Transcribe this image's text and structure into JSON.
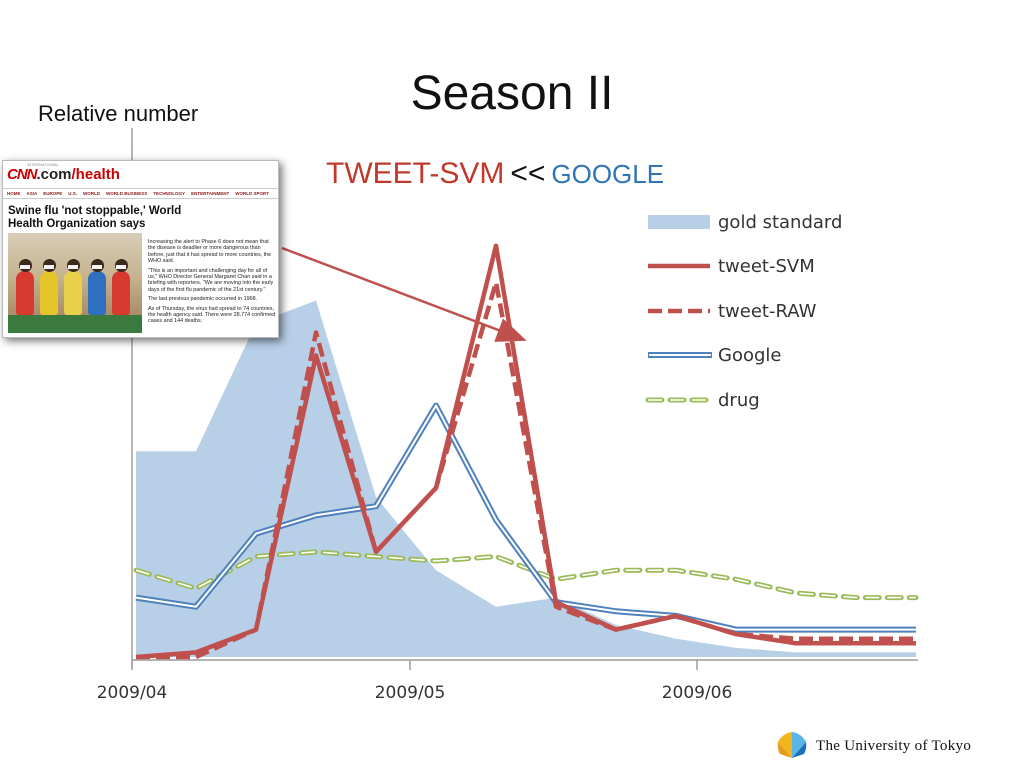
{
  "slide": {
    "title": "Season II",
    "y_axis_label": "Relative number",
    "subtitle": {
      "left": "TWEET-SVM",
      "mid": "<<",
      "right": "GOOGLE"
    }
  },
  "news_clip": {
    "brand_cnn": "CNN",
    "brand_domain": ".com",
    "brand_section": "/health",
    "brand_small": "INTERNATIONAL",
    "nav": [
      "HOME",
      "ASIA",
      "EUROPE",
      "U.S.",
      "WORLD",
      "WORLD BUSINESS",
      "TECHNOLOGY",
      "ENTERTAINMENT",
      "WORLD SPORT"
    ],
    "headline": "Swine flu 'not stoppable,' World Health Organization says",
    "paragraphs": [
      "Increasing the alert to Phase 6 does not mean that the disease is deadlier or more dangerous than before, just that it has spread to more countries, the WHO said.",
      "\"This is an important and challenging day for all of us,\" WHO Director General Margaret Chan said in a briefing with reporters. \"We are moving into the early days of the first flu pandemic of the 21st century.\"",
      "The last previous pandemic occurred in 1968.",
      "As of Thursday, the virus had spread to 74 countries, the health agency said. There were 28,774 confirmed cases and 144 deaths."
    ]
  },
  "logo": {
    "text": "The University of Tokyo"
  },
  "colors": {
    "gold": "#b8cfe8",
    "svm": "#c0504d",
    "google": "#4f81bd",
    "drug": "#9bbb59",
    "arrow": "#c0504d"
  },
  "chart_data": {
    "type": "line",
    "title": "",
    "ylabel": "Relative number",
    "xlabel": "",
    "x_ticks": [
      "2009/04",
      "2009/05",
      "2009/06"
    ],
    "legend_position": "top-right",
    "x": [
      0,
      1,
      2,
      3,
      4,
      5,
      6,
      7,
      8,
      9,
      10,
      11,
      12,
      13
    ],
    "ylim": [
      0,
      100
    ],
    "series": [
      {
        "name": "gold standard",
        "style": "area",
        "values": [
          45,
          45,
          73,
          78,
          35,
          19,
          11,
          13,
          7,
          4,
          2,
          1,
          1,
          1
        ]
      },
      {
        "name": "tweet-SVM",
        "style": "solid",
        "values": [
          0,
          1,
          6,
          66,
          23,
          37,
          90,
          12,
          6,
          9,
          5,
          3,
          3,
          3
        ]
      },
      {
        "name": "tweet-RAW",
        "style": "dashed",
        "values": [
          0,
          0,
          6,
          71,
          23,
          37,
          82,
          11,
          6,
          9,
          5,
          4,
          4,
          4
        ]
      },
      {
        "name": "Google",
        "style": "double",
        "values": [
          13,
          11,
          27,
          31,
          33,
          55,
          30,
          12,
          10,
          9,
          6,
          6,
          6,
          6
        ]
      },
      {
        "name": "drug",
        "style": "dotdash",
        "values": [
          19,
          15,
          22,
          23,
          22,
          21,
          22,
          17,
          19,
          19,
          17,
          14,
          13,
          13
        ]
      }
    ]
  }
}
